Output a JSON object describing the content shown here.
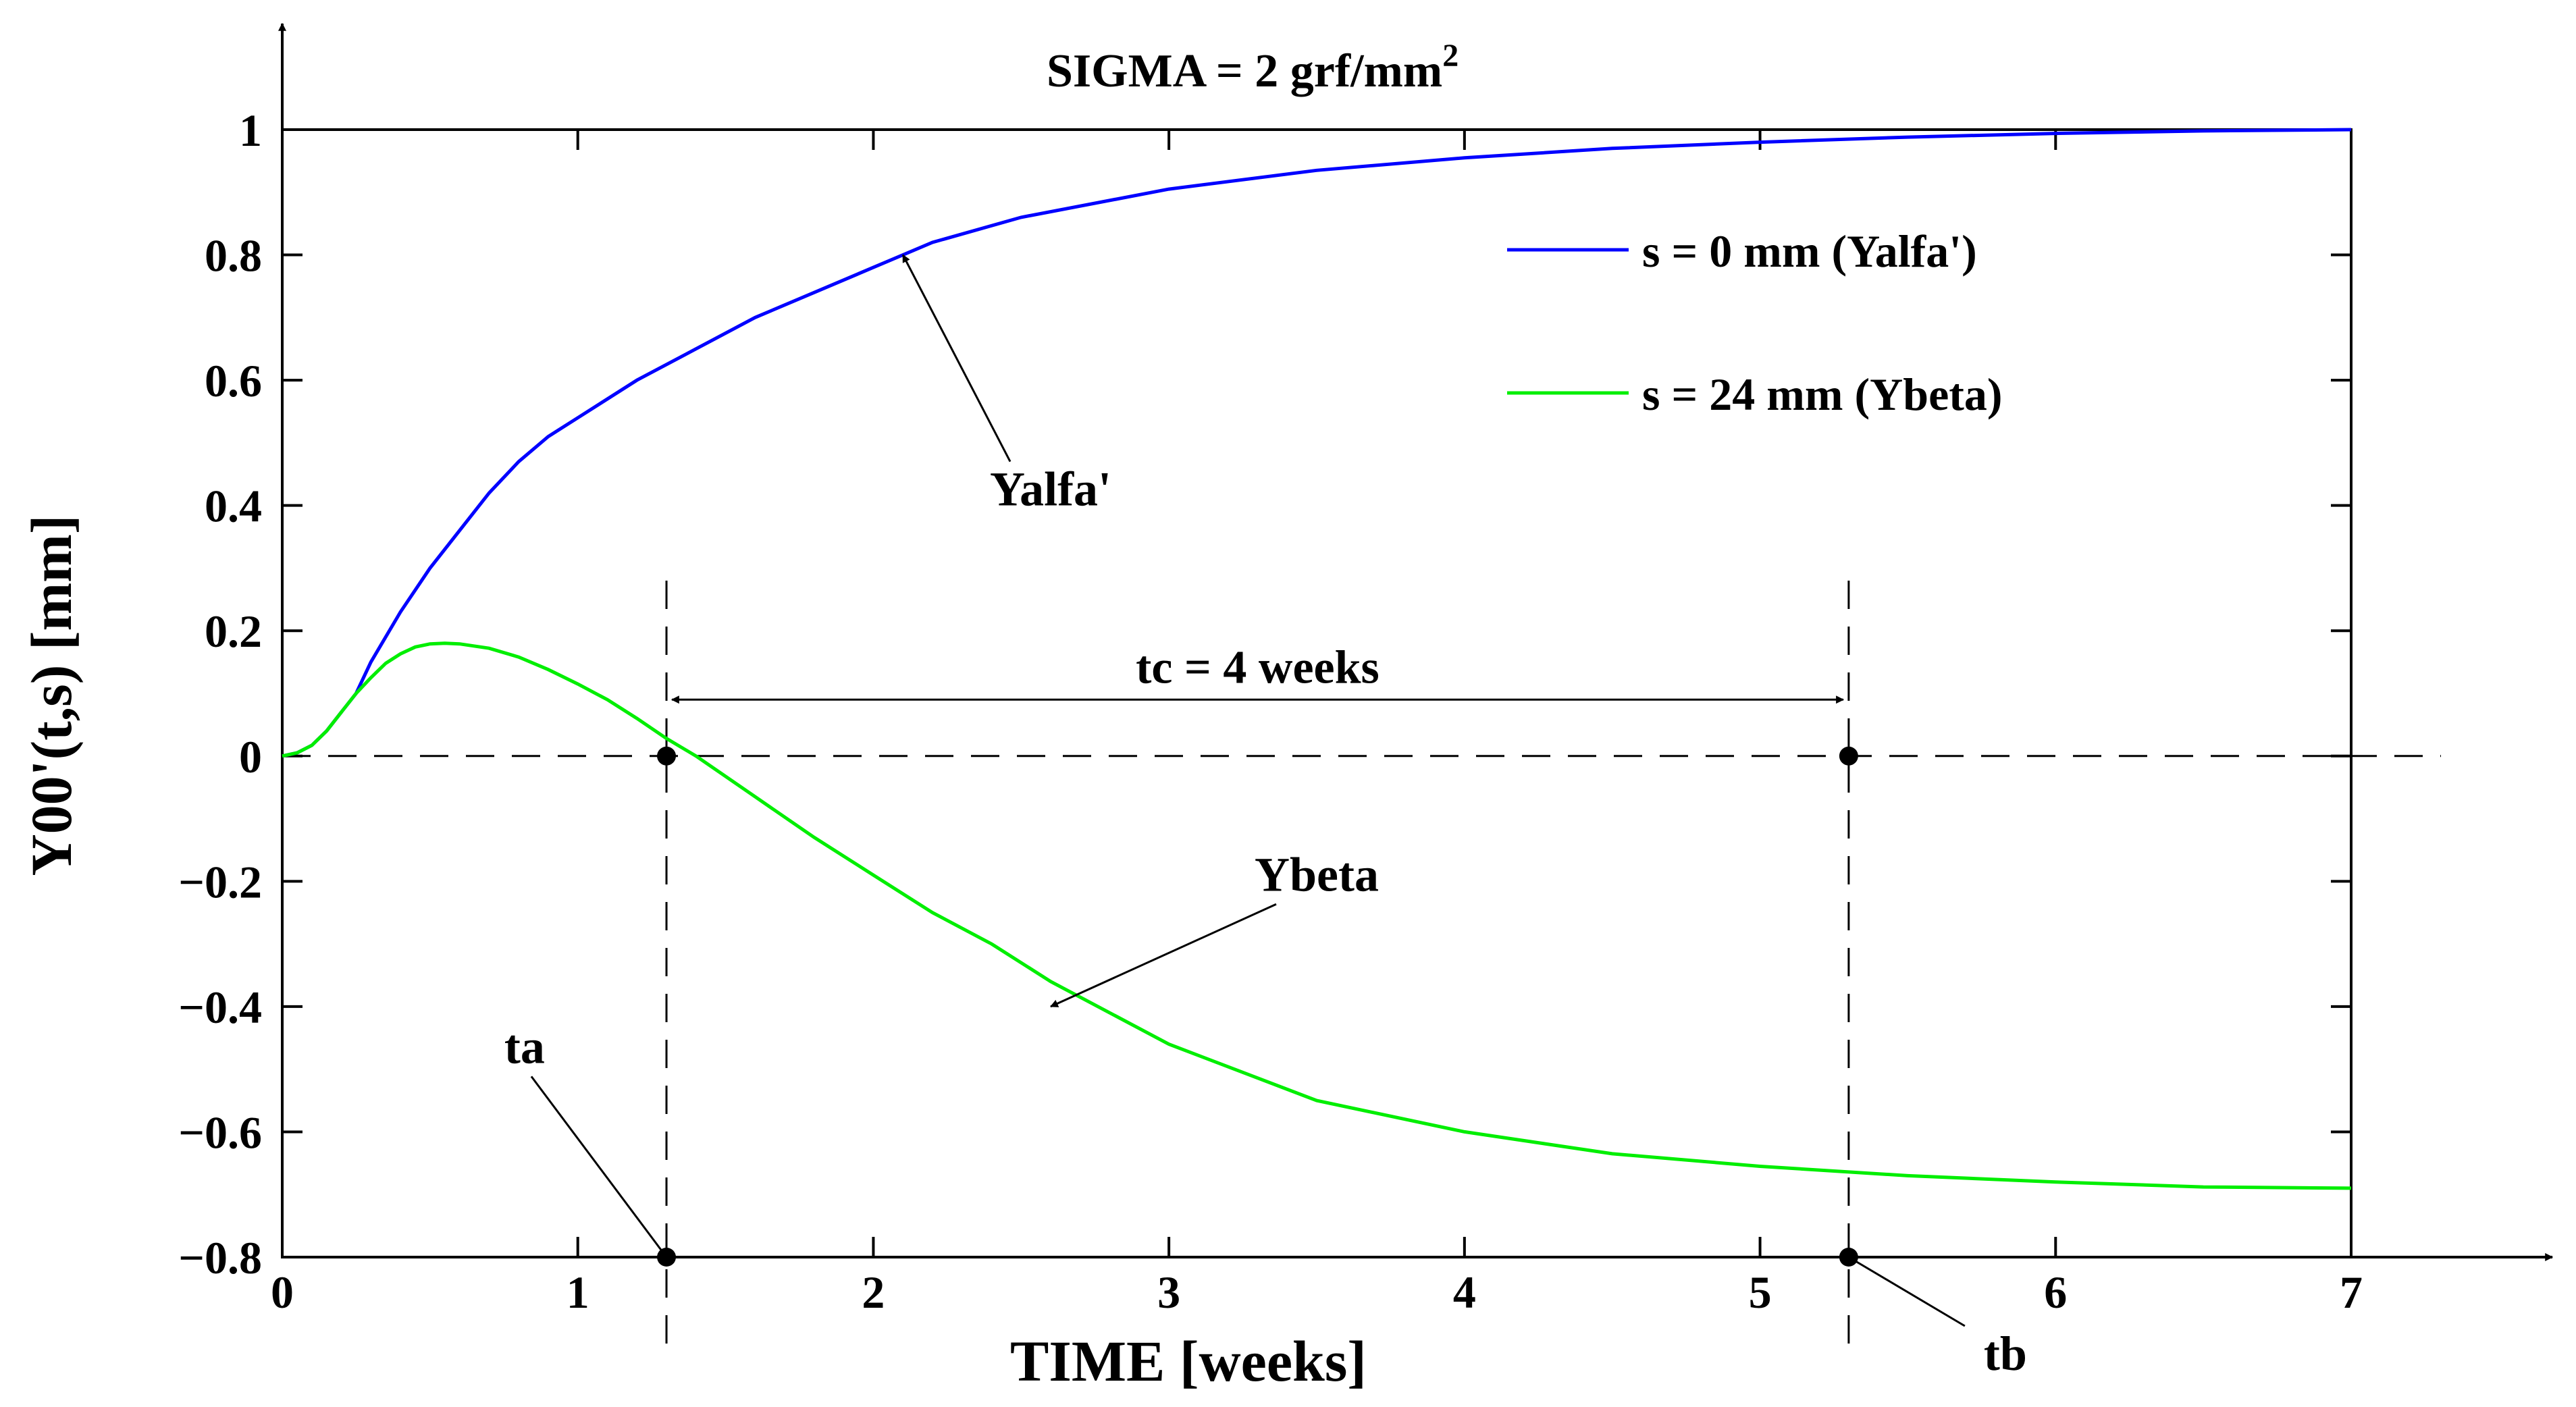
{
  "chart_data": {
    "type": "line",
    "title_main": "SIGMA = 2 grf/mm",
    "title_sup": "2",
    "xlabel": "TIME [weeks]",
    "ylabel": "Y00'(t,s) [mm]",
    "xlim": [
      0,
      7
    ],
    "ylim": [
      -0.8,
      1
    ],
    "x_ticks": [
      0,
      1,
      2,
      3,
      4,
      5,
      6,
      7
    ],
    "x_tick_labels": [
      "0",
      "1",
      "2",
      "3",
      "4",
      "5",
      "6",
      "7"
    ],
    "y_ticks": [
      1,
      0.8,
      0.6,
      0.4,
      0.2,
      0,
      -0.2,
      -0.4,
      -0.6,
      -0.8
    ],
    "y_tick_labels": [
      "1",
      "0.8",
      "0.6",
      "0.4",
      "0.2",
      "0",
      "−0.2",
      "−0.4",
      "−0.6",
      "−0.8"
    ],
    "series": [
      {
        "name": "s = 0 mm (Yalfa')",
        "color": "#0000ff",
        "x": [
          0,
          0.05,
          0.1,
          0.15,
          0.2,
          0.25,
          0.3,
          0.4,
          0.5,
          0.6,
          0.7,
          0.8,
          0.9,
          1.0,
          1.2,
          1.4,
          1.6,
          1.8,
          2.0,
          2.2,
          2.5,
          3.0,
          3.5,
          4.0,
          4.5,
          5.0,
          5.5,
          6.0,
          6.5,
          7.0
        ],
        "y": [
          0,
          0.005,
          0.017,
          0.04,
          0.07,
          0.1,
          0.15,
          0.23,
          0.3,
          0.36,
          0.42,
          0.47,
          0.51,
          0.54,
          0.6,
          0.65,
          0.7,
          0.74,
          0.78,
          0.82,
          0.86,
          0.905,
          0.935,
          0.955,
          0.97,
          0.98,
          0.988,
          0.994,
          0.998,
          1.0
        ]
      },
      {
        "name": "s = 24 mm (Ybeta)",
        "color": "#00ee00",
        "x": [
          0,
          0.05,
          0.1,
          0.15,
          0.2,
          0.25,
          0.3,
          0.35,
          0.4,
          0.45,
          0.5,
          0.55,
          0.6,
          0.7,
          0.8,
          0.9,
          1.0,
          1.1,
          1.2,
          1.3,
          1.4,
          1.6,
          1.8,
          2.0,
          2.2,
          2.4,
          2.6,
          3.0,
          3.5,
          4.0,
          4.5,
          5.0,
          5.5,
          6.0,
          6.5,
          7.0
        ],
        "y": [
          0,
          0.005,
          0.017,
          0.04,
          0.07,
          0.1,
          0.125,
          0.148,
          0.163,
          0.174,
          0.179,
          0.18,
          0.179,
          0.172,
          0.158,
          0.138,
          0.115,
          0.09,
          0.06,
          0.028,
          0,
          -0.065,
          -0.13,
          -0.19,
          -0.25,
          -0.3,
          -0.36,
          -0.46,
          -0.55,
          -0.6,
          -0.635,
          -0.655,
          -0.67,
          -0.68,
          -0.688,
          -0.69
        ]
      }
    ],
    "legend": {
      "location": "upper-right",
      "entries": [
        "s = 0 mm (Yalfa')",
        "s = 24 mm (Ybeta)"
      ]
    },
    "markers": [
      {
        "x": 1.3,
        "y": 0
      },
      {
        "x": 5.3,
        "y": 0
      },
      {
        "x": 1.3,
        "y": -0.8
      },
      {
        "x": 5.3,
        "y": -0.8
      }
    ],
    "vlines_x": [
      1.3,
      5.3
    ],
    "span_label": "tc = 4 weeks",
    "span": [
      1.3,
      5.3
    ],
    "span_y": 0.09,
    "annotations": [
      {
        "text": "Yalfa'",
        "text_x": 2.6,
        "text_y": 0.4,
        "target_x": 2.1,
        "target_y": 0.8
      },
      {
        "text": "Ybeta",
        "text_x": 3.5,
        "text_y": -0.215,
        "target_x": 2.6,
        "target_y": -0.4
      },
      {
        "text": "ta",
        "text_x": 0.82,
        "text_y": -0.49,
        "target_x": 1.3,
        "target_y": -0.8
      },
      {
        "text": "tb",
        "text_x": 5.83,
        "text_y": -0.98,
        "target_x": 5.3,
        "target_y": -0.8
      }
    ]
  }
}
